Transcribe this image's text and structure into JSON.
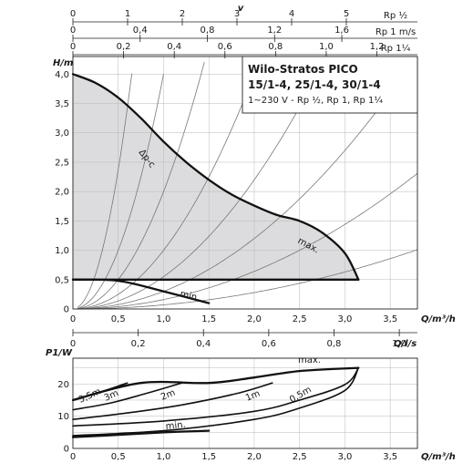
{
  "chart_data": [
    {
      "type": "line",
      "title": "Wilo-Stratos PICO",
      "subtitle": "15/1-4, 25/1-4, 30/1-4",
      "caption": "1~230 V - Rp ½, Rp 1, Rp 1¼",
      "ylabel": "H/m",
      "xlabel": "Q/m³/h",
      "xlim": [
        0,
        3.8
      ],
      "ylim": [
        0,
        4.3
      ],
      "x_ticks": [
        "0",
        "0,5",
        "1,0",
        "1,5",
        "2,0",
        "2,5",
        "3,0",
        "3,5"
      ],
      "y_ticks": [
        "0",
        "0,5",
        "1,0",
        "1,5",
        "2,0",
        "2,5",
        "3,0",
        "3,5",
        "4,0"
      ],
      "grid": true,
      "series": [
        {
          "name": "Δp-c",
          "x": [
            0.0,
            0.25,
            0.5,
            0.75,
            1.0,
            1.25,
            1.5,
            1.75,
            2.0,
            2.25,
            2.5
          ],
          "y": [
            4.0,
            3.85,
            3.6,
            3.25,
            2.85,
            2.5,
            2.2,
            1.95,
            1.76,
            1.6,
            1.5
          ]
        },
        {
          "name": "max.",
          "x": [
            2.5,
            2.75,
            3.0,
            3.15
          ],
          "y": [
            1.5,
            1.3,
            0.95,
            0.5
          ]
        },
        {
          "name": "min.",
          "x": [
            0.0,
            0.5,
            1.0,
            1.5
          ],
          "y": [
            0.5,
            0.48,
            0.3,
            0.1
          ]
        }
      ]
    },
    {
      "type": "line",
      "ylabel": "P1/W",
      "xlabel": "Q/m³/h",
      "xlim": [
        0,
        3.8
      ],
      "ylim": [
        0,
        28
      ],
      "x_ticks": [
        "0",
        "0,5",
        "1,0",
        "1,5",
        "2,0",
        "2,5",
        "3,0",
        "3,5"
      ],
      "y_ticks": [
        "0",
        "10",
        "20"
      ],
      "grid": true,
      "series": [
        {
          "name": "max.",
          "x": [
            0.0,
            0.75,
            1.5,
            2.0,
            2.5,
            3.15
          ],
          "y": [
            15,
            20.3,
            20.3,
            22,
            24,
            25
          ]
        },
        {
          "name": "3,5m",
          "x": [
            0.0,
            0.25,
            0.6
          ],
          "y": [
            15,
            17,
            20.3
          ]
        },
        {
          "name": "3m",
          "x": [
            0.0,
            0.4,
            0.8,
            1.2
          ],
          "y": [
            12,
            14,
            17,
            20.3
          ]
        },
        {
          "name": "2m",
          "x": [
            0.0,
            0.6,
            1.2,
            1.8,
            2.2
          ],
          "y": [
            9,
            11,
            13.5,
            17,
            20.3
          ]
        },
        {
          "name": "1m",
          "x": [
            0.0,
            1.0,
            2.0,
            2.5,
            3.0,
            3.15
          ],
          "y": [
            7,
            8.5,
            11.5,
            15,
            19.8,
            25
          ]
        },
        {
          "name": "0,5m",
          "x": [
            0.0,
            1.0,
            2.0,
            2.5,
            3.0,
            3.15
          ],
          "y": [
            4,
            5.5,
            9,
            12.5,
            18,
            25
          ]
        },
        {
          "name": "min.",
          "x": [
            0.0,
            0.5,
            1.0,
            1.5
          ],
          "y": [
            3.5,
            4.2,
            5,
            5.5
          ]
        }
      ]
    }
  ],
  "top_scales": [
    {
      "label": "v",
      "unit": "Rp ½",
      "ticks": [
        "0",
        "1",
        "2",
        "3",
        "4",
        "5"
      ]
    },
    {
      "label": "",
      "unit": "Rp 1 m/s",
      "ticks": [
        "0",
        "0,4",
        "0,8",
        "1,2",
        "1,6"
      ]
    },
    {
      "label": "",
      "unit": "Rp 1¼",
      "ticks": [
        "0",
        "0,2",
        "0,4",
        "0,6",
        "0,8",
        "1,0",
        "1,2"
      ]
    }
  ],
  "mid_scale": {
    "unit": "Q/l/s",
    "ticks": [
      "0",
      "0,2",
      "0,4",
      "0,6",
      "0,8",
      "1,0"
    ]
  },
  "labels": {
    "dpc": "Δp-c",
    "max_top": "max.",
    "min_top": "min.",
    "max_bottom": "max.",
    "min_bottom": "min.",
    "h35": "3,5m",
    "h3": "3m",
    "h2": "2m",
    "h1": "1m",
    "h05": "0,5m"
  },
  "colors": {
    "fill": "#dcdcde",
    "curve": "#111111",
    "grid": "#b8b8b8"
  }
}
